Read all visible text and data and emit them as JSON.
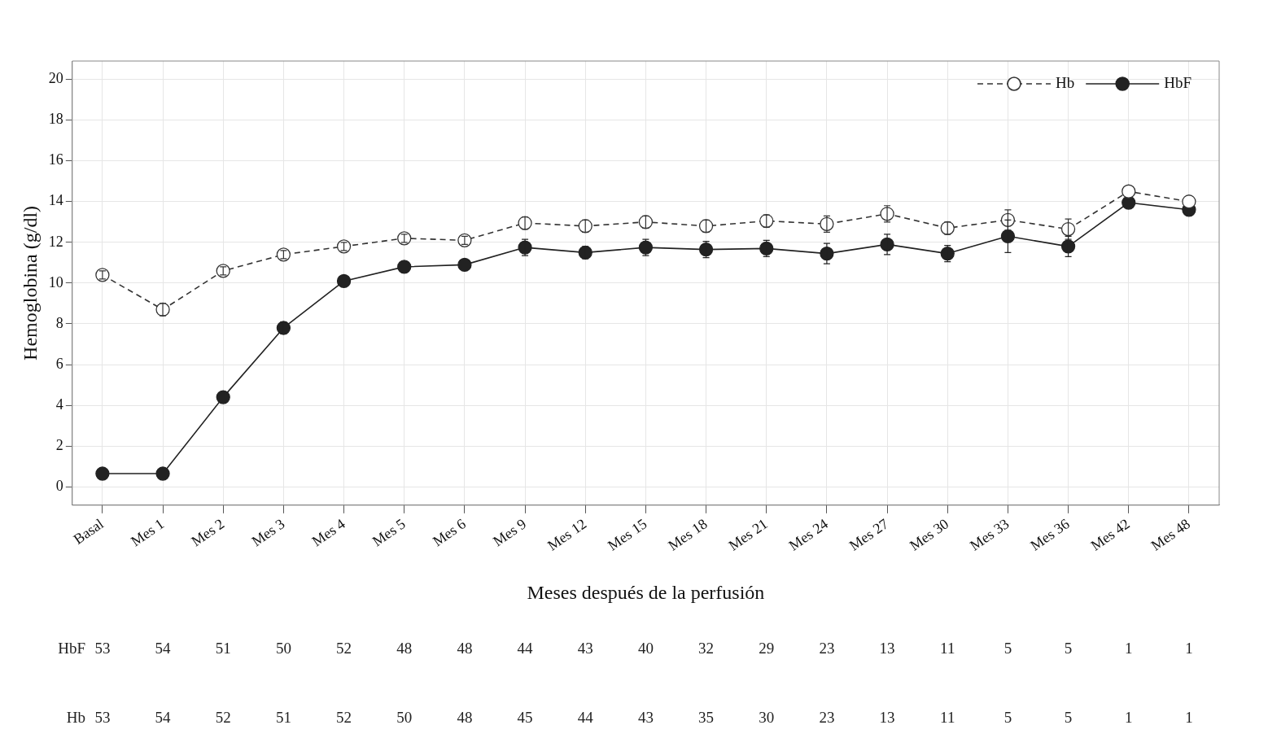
{
  "chart_data": {
    "type": "line",
    "xlabel": "Meses después de la perfusión",
    "ylabel": "Hemoglobina (g/dl)",
    "categories": [
      "Basal",
      "Mes 1",
      "Mes 2",
      "Mes 3",
      "Mes 4",
      "Mes 5",
      "Mes 6",
      "Mes 9",
      "Mes 12",
      "Mes 15",
      "Mes 18",
      "Mes 21",
      "Mes 24",
      "Mes 27",
      "Mes 30",
      "Mes 33",
      "Mes 36",
      "Mes 42",
      "Mes 48"
    ],
    "ylim": [
      -0.9,
      20.9
    ],
    "yticks": [
      0,
      2,
      4,
      6,
      8,
      10,
      12,
      14,
      16,
      18,
      20
    ],
    "grid": true,
    "legend": "top right",
    "marker": "circle",
    "series": [
      {
        "name": "Hb",
        "color": "#333333",
        "line_style": "dashed",
        "values": [
          10.4,
          8.7,
          10.6,
          11.4,
          11.8,
          12.2,
          12.1,
          12.95,
          12.8,
          13.0,
          12.8,
          13.05,
          12.9,
          13.4,
          12.7,
          13.1,
          12.65,
          14.5,
          14.0
        ],
        "errors": [
          0.2,
          0.3,
          0.2,
          0.2,
          0.2,
          0.2,
          0.2,
          0.3,
          0.3,
          0.3,
          0.3,
          0.3,
          0.4,
          0.4,
          0.3,
          0.5,
          0.5,
          null,
          null
        ]
      },
      {
        "name": "HbF",
        "color": "#222222",
        "line_style": "solid",
        "values": [
          0.65,
          0.65,
          4.4,
          7.8,
          10.1,
          10.8,
          10.9,
          11.75,
          11.5,
          11.75,
          11.65,
          11.7,
          11.45,
          11.9,
          11.45,
          12.3,
          11.8,
          13.95,
          13.6
        ],
        "errors": [
          null,
          null,
          null,
          0.3,
          null,
          null,
          null,
          0.4,
          0.3,
          0.4,
          0.4,
          0.4,
          0.5,
          0.5,
          0.4,
          0.8,
          0.5,
          null,
          null
        ]
      }
    ],
    "annotations": [
      "HbF 53 54 51 50 52 48 48 44 43 40 32 29 23 13 11 5 5 1 1",
      "Hb 53 54 52 51 52 50 48 45 44 43 35 30 23 13 11 5 5 1 1"
    ]
  }
}
